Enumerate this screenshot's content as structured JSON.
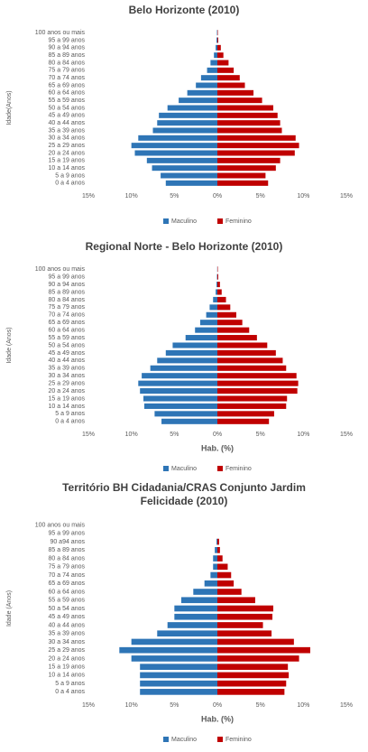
{
  "chart_data": [
    {
      "type": "pyramid",
      "title": "Belo Horizonte (2010)",
      "ylabel": "Idade(Anos)",
      "categories": [
        "0 a 4 anos",
        "5 a 9 anos",
        "10 a 14 anos",
        "15 a 19 anos",
        "20 a 24 anos",
        "25 a 29 anos",
        "30 a 34 anos",
        "35 a 39 anos",
        "40 a 44 anos",
        "45 a 49 anos",
        "50 a 54 anos",
        "55 a 59 anos",
        "60 a 64 anos",
        "65 a 69 anos",
        "70 a 74 anos",
        "75 a 79 anos",
        "80 a 84 anos",
        "85 a 89 anos",
        "90 a 94 anos",
        "95 a 99 anos",
        "100 anos ou mais"
      ],
      "series": [
        {
          "name": "Maculino",
          "color": "#2e75b6",
          "values": [
            -6.0,
            -6.6,
            -7.6,
            -8.2,
            -9.6,
            -10.0,
            -9.2,
            -7.5,
            -7.0,
            -6.8,
            -5.8,
            -4.5,
            -3.5,
            -2.5,
            -1.9,
            -1.2,
            -0.8,
            -0.4,
            -0.2,
            -0.1,
            -0.05
          ]
        },
        {
          "name": "Feminino",
          "color": "#c00000",
          "values": [
            5.9,
            5.6,
            6.8,
            7.3,
            9.0,
            9.5,
            9.1,
            7.5,
            7.3,
            7.0,
            6.5,
            5.2,
            4.2,
            3.2,
            2.6,
            1.9,
            1.3,
            0.7,
            0.4,
            0.1,
            0.05
          ]
        }
      ],
      "xlim": [
        -15,
        15
      ],
      "xticks": [
        {
          "value": -15,
          "label": "15%"
        },
        {
          "value": -10,
          "label": "10%"
        },
        {
          "value": -5,
          "label": "5%"
        },
        {
          "value": 0,
          "label": "0%"
        },
        {
          "value": 5,
          "label": "5%"
        },
        {
          "value": 10,
          "label": "10%"
        },
        {
          "value": 15,
          "label": "15%"
        }
      ]
    },
    {
      "type": "pyramid",
      "title": "Regional Norte - Belo Horizonte (2010)",
      "ylabel": "Idade (Anos)",
      "xlabel": "Hab. (%)",
      "categories": [
        "0 a 4 anos",
        "5 a 9 anos",
        "10 a 14 anos",
        "15 a 19 anos",
        "20 a 24 anos",
        "25 a 29 anos",
        "30 a 34 anos",
        "35 a 39 anos",
        "40 a 44 anos",
        "45 a 49 anos",
        "50 a 54 anos",
        "55 a 59 anos",
        "60 a 64 anos",
        "65 a 69 anos",
        "70 a 74 anos",
        "75 a 79 anos",
        "80 a 84 anos",
        "85 a 89 anos",
        "90 a 94 anos",
        "95 a 99 anos",
        "100 anos ou mais"
      ],
      "series": [
        {
          "name": "Maculino",
          "color": "#2e75b6",
          "values": [
            -6.5,
            -7.3,
            -8.5,
            -8.6,
            -9.0,
            -9.2,
            -8.8,
            -7.8,
            -7.0,
            -6.0,
            -5.2,
            -3.7,
            -2.6,
            -2.0,
            -1.3,
            -0.9,
            -0.5,
            -0.2,
            -0.1,
            -0.05,
            -0.02
          ]
        },
        {
          "name": "Feminino",
          "color": "#c00000",
          "values": [
            6.0,
            6.6,
            8.0,
            8.1,
            9.3,
            9.4,
            9.2,
            8.0,
            7.6,
            6.8,
            5.8,
            4.6,
            3.7,
            2.9,
            2.2,
            1.5,
            1.0,
            0.5,
            0.3,
            0.1,
            0.05
          ]
        }
      ],
      "xlim": [
        -15,
        15
      ],
      "xticks": [
        {
          "value": -15,
          "label": "15%"
        },
        {
          "value": -10,
          "label": "10%"
        },
        {
          "value": -5,
          "label": "5%"
        },
        {
          "value": 0,
          "label": "0%"
        },
        {
          "value": 5,
          "label": "5%"
        },
        {
          "value": 10,
          "label": "10%"
        },
        {
          "value": 15,
          "label": "15%"
        }
      ]
    },
    {
      "type": "pyramid",
      "title": "Território BH Cidadania/CRAS Conjunto Jardim Felicidade (2010)",
      "ylabel": "Idade (Anos)",
      "xlabel": "Hab. (%)",
      "categories": [
        "0 a 4 anos",
        "5 a 9 anos",
        "10 a 14 anos",
        "15 a 19 anos",
        "20 a 24 anos",
        "25 a 29 anos",
        "30 a 34 anos",
        "35 a 39 anos",
        "40 a 44 anos",
        "45 a 49 anos",
        "50 a 54 anos",
        "55 a 59 anos",
        "60 a 64 anos",
        "65 a 69 anos",
        "70 a 74 anos",
        "75 a 79 anos",
        "80 a 84 anos",
        "85 a 89 anos",
        "90 a94 anos",
        "95 a 99 anos",
        "100 anos ou mais"
      ],
      "series": [
        {
          "name": "Maculino",
          "color": "#2e75b6",
          "values": [
            -9.0,
            -9.0,
            -9.0,
            -9.0,
            -10.0,
            -11.4,
            -10.0,
            -7.0,
            -5.8,
            -5.0,
            -5.0,
            -4.2,
            -2.8,
            -1.5,
            -0.8,
            -0.5,
            -0.5,
            -0.3,
            -0.1,
            0,
            0
          ]
        },
        {
          "name": "Feminino",
          "color": "#c00000",
          "values": [
            7.8,
            8.0,
            8.3,
            8.2,
            9.5,
            10.8,
            8.9,
            6.3,
            5.3,
            6.4,
            6.5,
            4.4,
            2.8,
            1.9,
            1.6,
            1.2,
            0.6,
            0.3,
            0.2,
            0,
            0
          ]
        }
      ],
      "xlim": [
        -15,
        15
      ],
      "xticks": [
        {
          "value": -15,
          "label": "15%"
        },
        {
          "value": -10,
          "label": "10%"
        },
        {
          "value": -5,
          "label": "5%"
        },
        {
          "value": 0,
          "label": "0%"
        },
        {
          "value": 5,
          "label": "5%"
        },
        {
          "value": 10,
          "label": "10%"
        },
        {
          "value": 15,
          "label": "15%"
        }
      ]
    }
  ]
}
